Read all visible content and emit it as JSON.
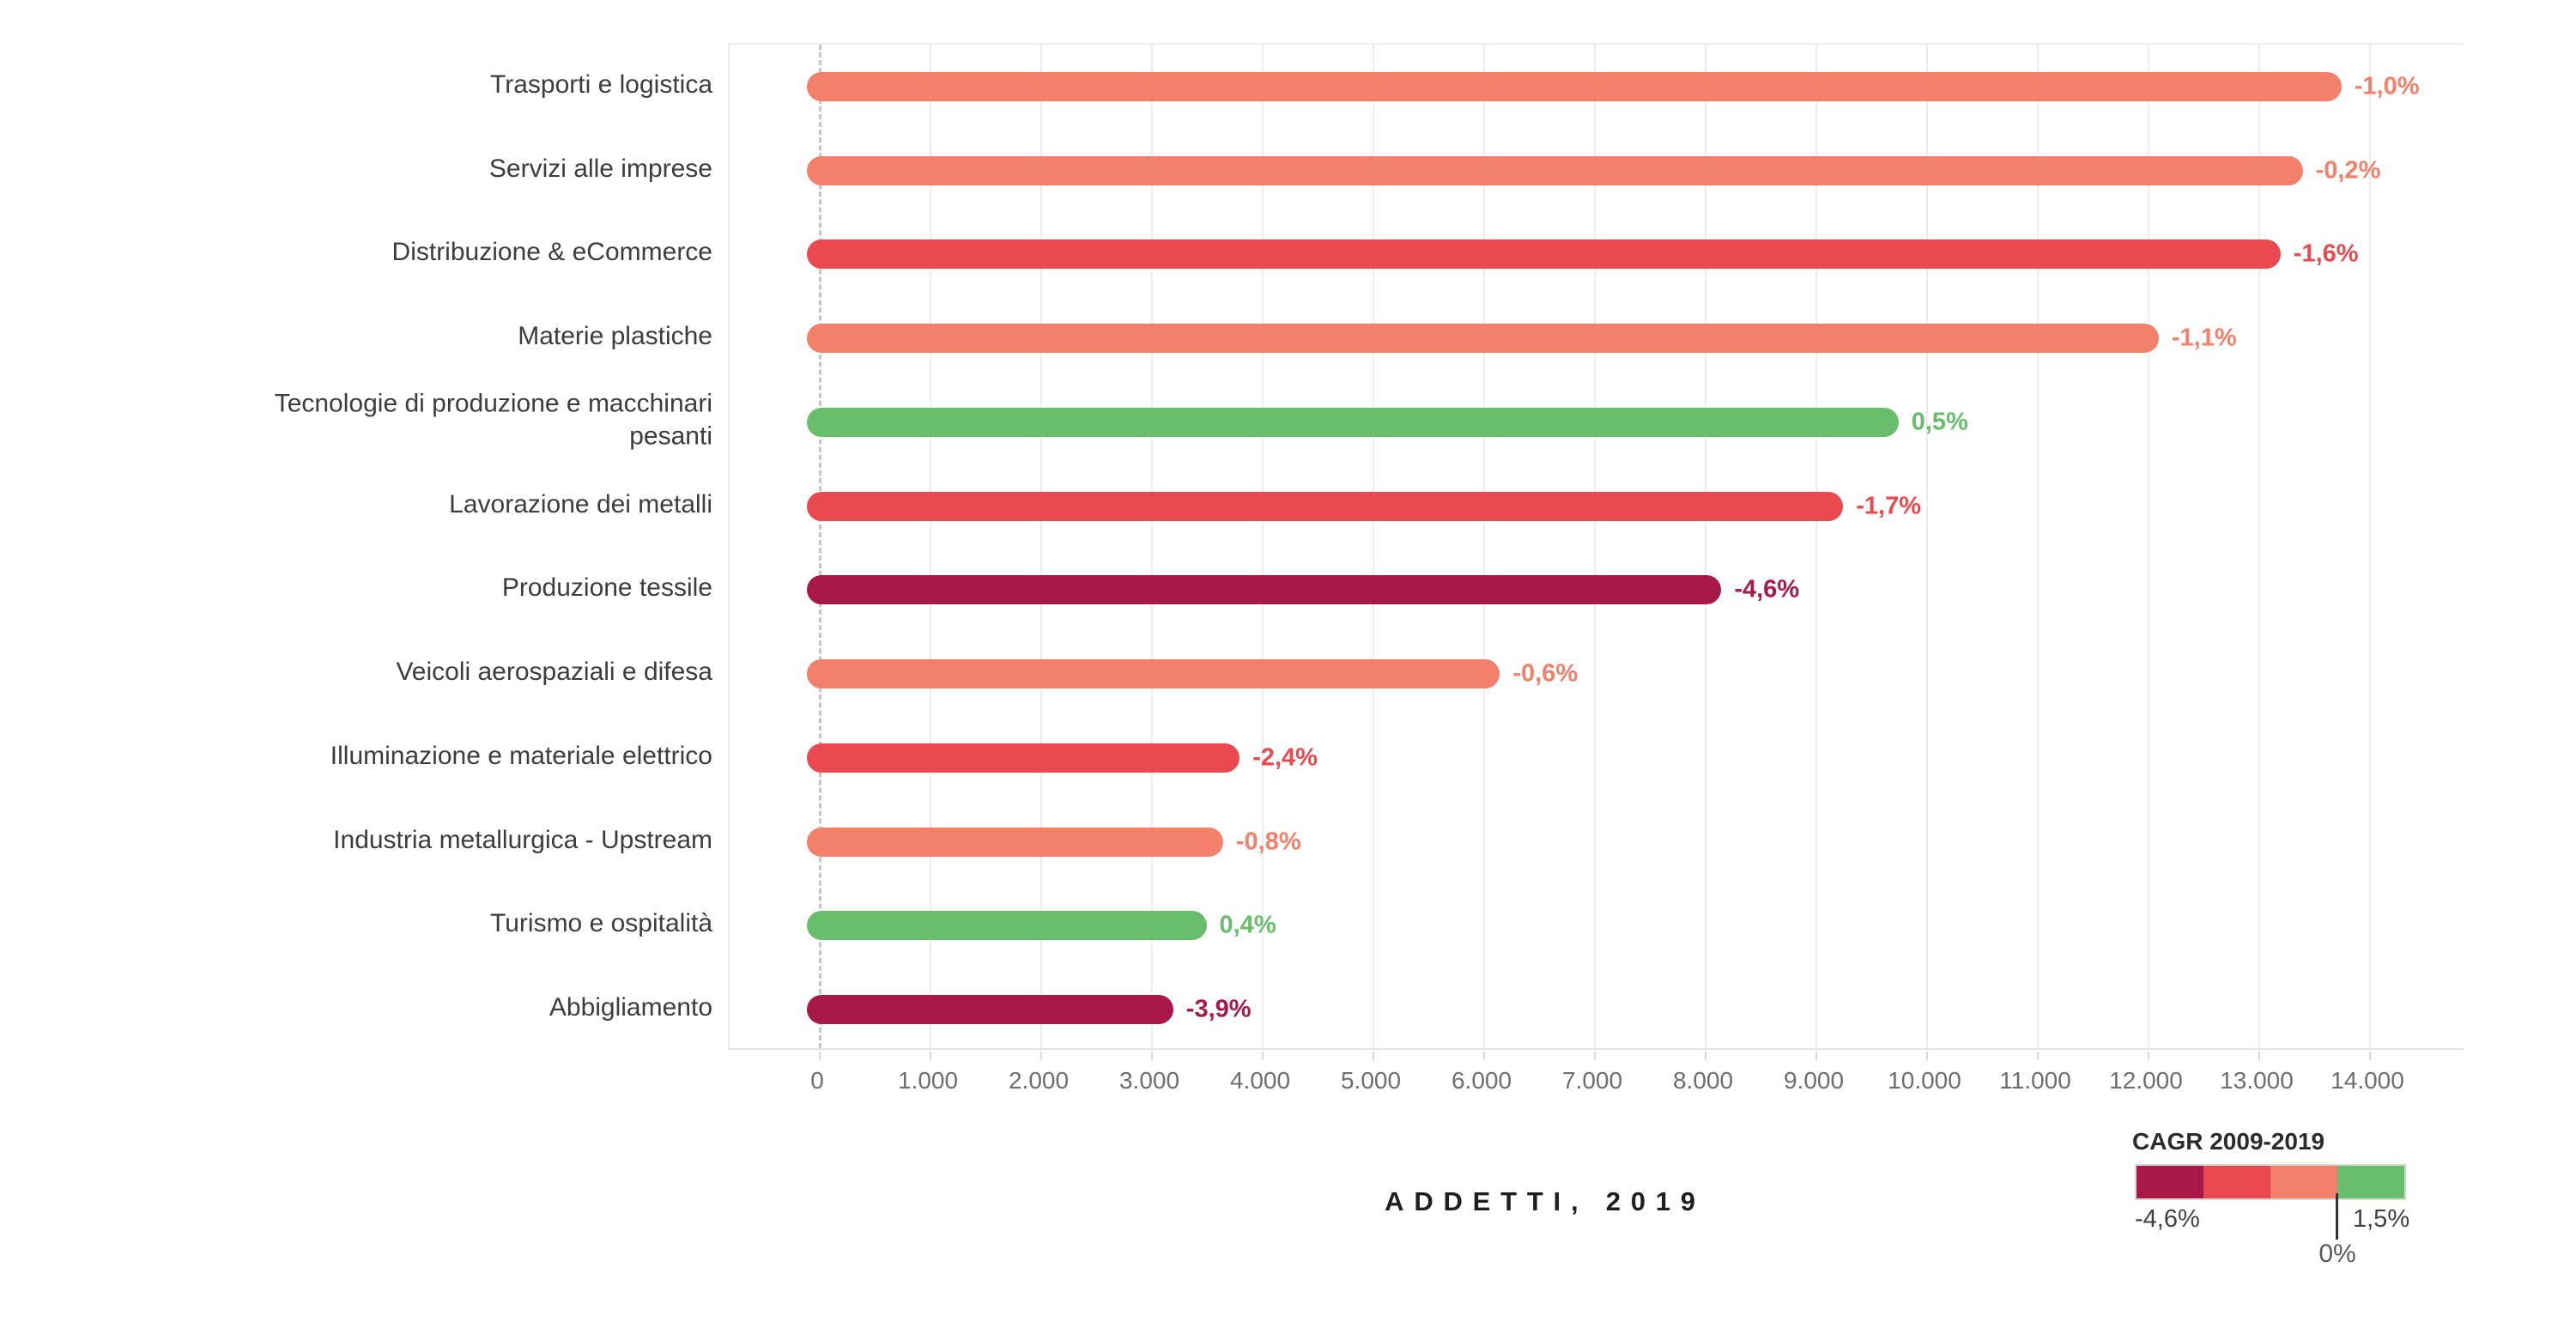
{
  "palette": {
    "maroon": "#A81947",
    "red": "#E9494F",
    "salmon": "#F3806B",
    "green": "#69BE6E"
  },
  "chart_data": {
    "type": "bar",
    "orientation": "horizontal",
    "xlabel": "ADDETTI, 2019",
    "x_axis": {
      "min": 0,
      "max": 14000,
      "tick_interval": 1000,
      "tick_labels": [
        "0",
        "1.000",
        "2.000",
        "3.000",
        "4.000",
        "5.000",
        "6.000",
        "7.000",
        "8.000",
        "9.000",
        "10.000",
        "11.000",
        "12.000",
        "13.000",
        "14.000"
      ]
    },
    "grid": true,
    "rows": [
      {
        "label": "Trasporti e logistica",
        "value": 13750,
        "cagr": -1.0,
        "cagr_label": "-1,0%",
        "color": "salmon"
      },
      {
        "label": "Servizi alle imprese",
        "value": 13400,
        "cagr": -0.2,
        "cagr_label": "-0,2%",
        "color": "salmon"
      },
      {
        "label": "Distribuzione & eCommerce",
        "value": 13200,
        "cagr": -1.6,
        "cagr_label": "-1,6%",
        "color": "red"
      },
      {
        "label": "Materie plastiche",
        "value": 12100,
        "cagr": -1.1,
        "cagr_label": "-1,1%",
        "color": "salmon"
      },
      {
        "label": "Tecnologie di produzione e macchinari\npesanti",
        "value": 9750,
        "cagr": 0.5,
        "cagr_label": "0,5%",
        "color": "green"
      },
      {
        "label": "Lavorazione dei metalli",
        "value": 9250,
        "cagr": -1.7,
        "cagr_label": "-1,7%",
        "color": "red"
      },
      {
        "label": "Produzione tessile",
        "value": 8150,
        "cagr": -4.6,
        "cagr_label": "-4,6%",
        "color": "maroon"
      },
      {
        "label": "Veicoli aerospaziali e difesa",
        "value": 6150,
        "cagr": -0.6,
        "cagr_label": "-0,6%",
        "color": "salmon"
      },
      {
        "label": "Illuminazione e materiale elettrico",
        "value": 3800,
        "cagr": -2.4,
        "cagr_label": "-2,4%",
        "color": "red"
      },
      {
        "label": "Industria metallurgica - Upstream",
        "value": 3650,
        "cagr": -0.8,
        "cagr_label": "-0,8%",
        "color": "salmon"
      },
      {
        "label": "Turismo e ospitalità",
        "value": 3500,
        "cagr": 0.4,
        "cagr_label": "0,4%",
        "color": "green"
      },
      {
        "label": "Abbigliamento",
        "value": 3200,
        "cagr": -3.9,
        "cagr_label": "-3,9%",
        "color": "maroon"
      }
    ],
    "legend": {
      "title": "CAGR 2009-2019",
      "min_label": "-4,6%",
      "max_label": "1,5%",
      "zero_label": "0%",
      "zero_position": 0.75,
      "segments": [
        "maroon",
        "red",
        "salmon",
        "green"
      ],
      "position": "bottom-right"
    }
  }
}
